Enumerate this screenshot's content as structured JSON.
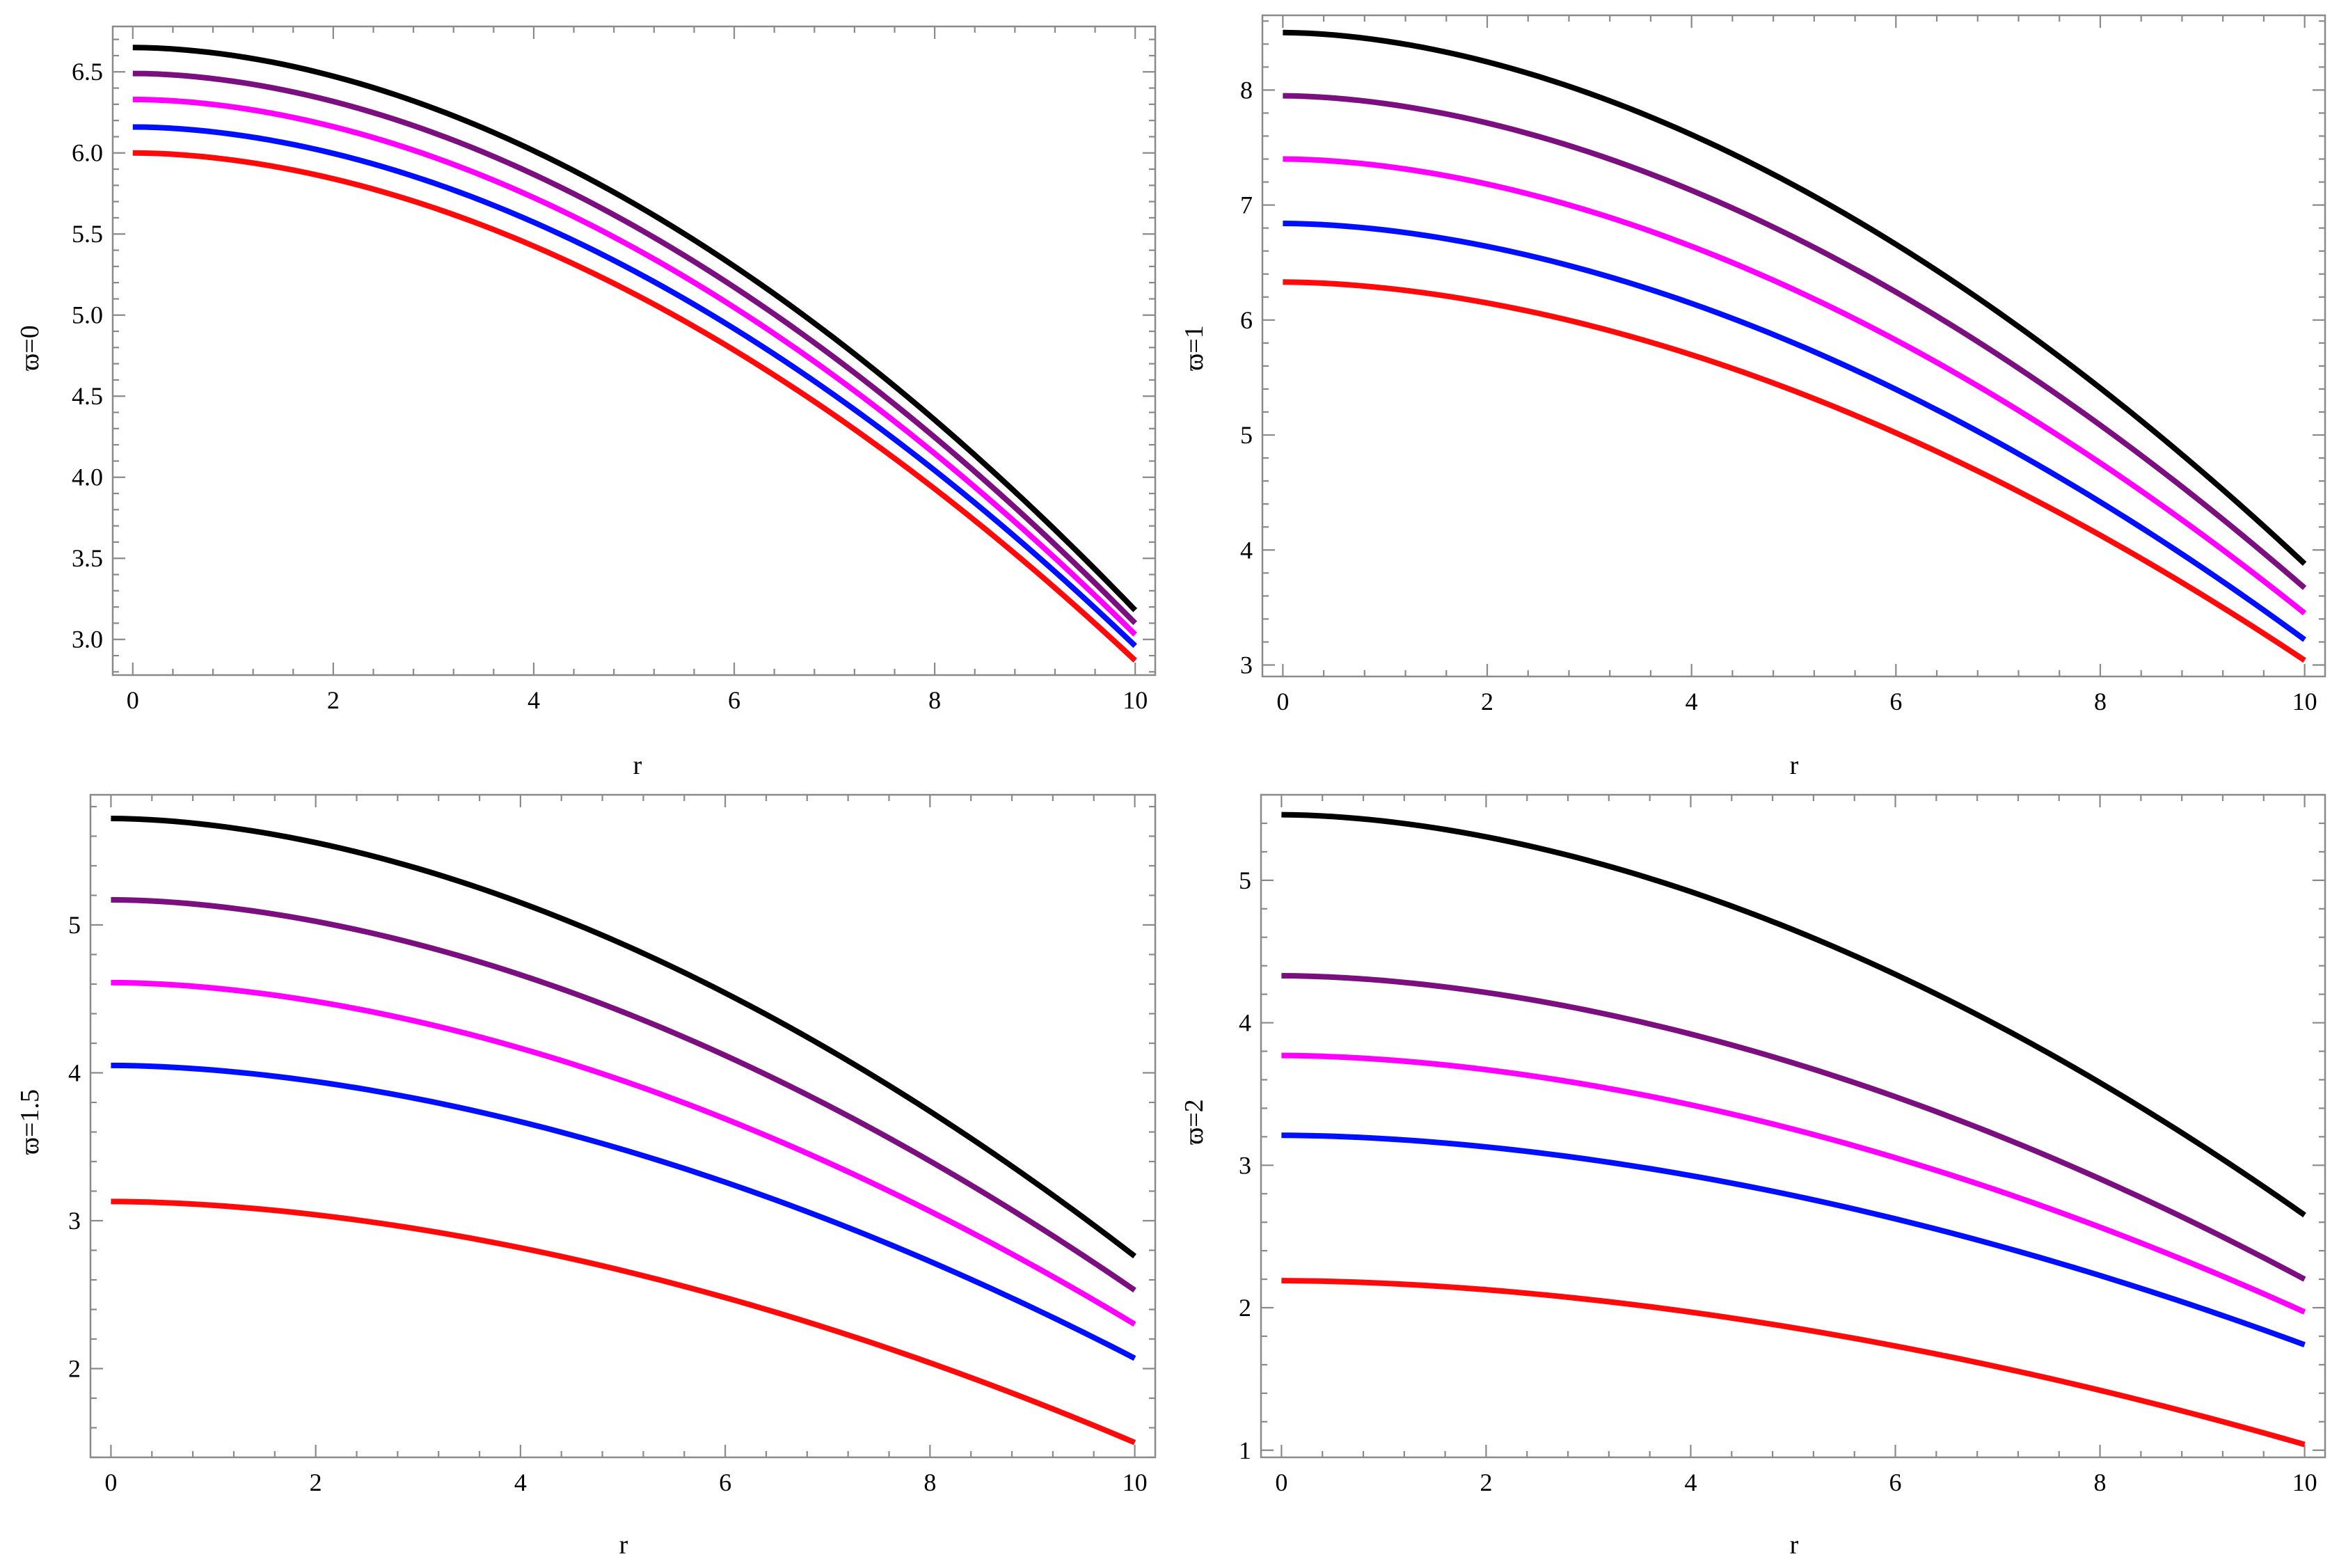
{
  "figure": {
    "colors": {
      "black": "#000000",
      "purple": "#7B0F7F",
      "magenta": "#FF00FF",
      "blue": "#0010FF",
      "red": "#FF0A0A",
      "frame": "#8a8a8a"
    }
  },
  "chart_data": [
    {
      "id": "p1",
      "type": "line",
      "title": "",
      "xlabel": "r",
      "ylabel": "ϖ=0",
      "xlim": [
        -0.2,
        10.2
      ],
      "ylim": [
        2.78,
        6.78
      ],
      "x_ticks": [
        0,
        2,
        4,
        6,
        8,
        10
      ],
      "x_tick_labels": [
        "0",
        "2",
        "4",
        "6",
        "8",
        "10"
      ],
      "y_ticks": [
        3.0,
        3.5,
        4.0,
        4.5,
        5.0,
        5.5,
        6.0,
        6.5
      ],
      "y_tick_labels": [
        "3.0",
        "3.5",
        "4.0",
        "4.5",
        "5.0",
        "5.5",
        "6.0",
        "6.5"
      ],
      "x_minor_step": 0.4,
      "y_minor_step": 0.1,
      "grid": false,
      "series": [
        {
          "name": "black",
          "color": "#000000",
          "y0": 6.65,
          "y10": 3.18,
          "p": 1.85
        },
        {
          "name": "purple",
          "color": "#7B0F7F",
          "y0": 6.49,
          "y10": 3.1,
          "p": 1.85
        },
        {
          "name": "magenta",
          "color": "#FF00FF",
          "y0": 6.33,
          "y10": 3.03,
          "p": 1.85
        },
        {
          "name": "blue",
          "color": "#0010FF",
          "y0": 6.16,
          "y10": 2.96,
          "p": 1.85
        },
        {
          "name": "red",
          "color": "#FF0A0A",
          "y0": 6.0,
          "y10": 2.87,
          "p": 1.85
        }
      ]
    },
    {
      "id": "p2",
      "type": "line",
      "title": "",
      "xlabel": "r",
      "ylabel": "ϖ=1",
      "xlim": [
        -0.2,
        10.2
      ],
      "ylim": [
        2.9,
        8.65
      ],
      "x_ticks": [
        0,
        2,
        4,
        6,
        8,
        10
      ],
      "x_tick_labels": [
        "0",
        "2",
        "4",
        "6",
        "8",
        "10"
      ],
      "y_ticks": [
        3,
        4,
        5,
        6,
        7,
        8
      ],
      "y_tick_labels": [
        "3",
        "4",
        "5",
        "6",
        "7",
        "8"
      ],
      "x_minor_step": 0.4,
      "y_minor_step": 0.2,
      "grid": false,
      "series": [
        {
          "name": "black",
          "color": "#000000",
          "y0": 8.5,
          "y10": 3.88,
          "p": 1.8
        },
        {
          "name": "purple",
          "color": "#7B0F7F",
          "y0": 7.95,
          "y10": 3.67,
          "p": 1.8
        },
        {
          "name": "magenta",
          "color": "#FF00FF",
          "y0": 7.4,
          "y10": 3.45,
          "p": 1.8
        },
        {
          "name": "blue",
          "color": "#0010FF",
          "y0": 6.84,
          "y10": 3.22,
          "p": 1.8
        },
        {
          "name": "red",
          "color": "#FF0A0A",
          "y0": 6.33,
          "y10": 3.04,
          "p": 1.8
        }
      ]
    },
    {
      "id": "p3",
      "type": "line",
      "title": "",
      "xlabel": "r",
      "ylabel": "ϖ=1.5",
      "xlim": [
        -0.2,
        10.2
      ],
      "ylim": [
        1.4,
        5.88
      ],
      "x_ticks": [
        0,
        2,
        4,
        6,
        8,
        10
      ],
      "x_tick_labels": [
        "0",
        "2",
        "4",
        "6",
        "8",
        "10"
      ],
      "y_ticks": [
        2,
        3,
        4,
        5
      ],
      "y_tick_labels": [
        "2",
        "3",
        "4",
        "5"
      ],
      "x_minor_step": 0.4,
      "y_minor_step": 0.2,
      "grid": false,
      "series": [
        {
          "name": "black",
          "color": "#000000",
          "y0": 5.72,
          "y10": 2.76,
          "p": 1.8
        },
        {
          "name": "purple",
          "color": "#7B0F7F",
          "y0": 5.17,
          "y10": 2.53,
          "p": 1.8
        },
        {
          "name": "magenta",
          "color": "#FF00FF",
          "y0": 4.61,
          "y10": 2.3,
          "p": 1.8
        },
        {
          "name": "blue",
          "color": "#0010FF",
          "y0": 4.05,
          "y10": 2.07,
          "p": 1.8
        },
        {
          "name": "red",
          "color": "#FF0A0A",
          "y0": 3.13,
          "y10": 1.5,
          "p": 1.8
        }
      ]
    },
    {
      "id": "p4",
      "type": "line",
      "title": "",
      "xlabel": "r",
      "ylabel": "ϖ=2",
      "xlim": [
        -0.2,
        10.2
      ],
      "ylim": [
        0.95,
        5.6
      ],
      "x_ticks": [
        0,
        2,
        4,
        6,
        8,
        10
      ],
      "x_tick_labels": [
        "0",
        "2",
        "4",
        "6",
        "8",
        "10"
      ],
      "y_ticks": [
        1,
        2,
        3,
        4,
        5
      ],
      "y_tick_labels": [
        "1",
        "2",
        "3",
        "4",
        "5"
      ],
      "x_minor_step": 0.4,
      "y_minor_step": 0.2,
      "grid": false,
      "series": [
        {
          "name": "black",
          "color": "#000000",
          "y0": 5.46,
          "y10": 2.65,
          "p": 1.8
        },
        {
          "name": "purple",
          "color": "#7B0F7F",
          "y0": 4.33,
          "y10": 2.2,
          "p": 1.8
        },
        {
          "name": "magenta",
          "color": "#FF00FF",
          "y0": 3.77,
          "y10": 1.97,
          "p": 1.8
        },
        {
          "name": "blue",
          "color": "#0010FF",
          "y0": 3.21,
          "y10": 1.74,
          "p": 1.8
        },
        {
          "name": "red",
          "color": "#FF0A0A",
          "y0": 2.19,
          "y10": 1.04,
          "p": 1.8
        }
      ]
    }
  ]
}
